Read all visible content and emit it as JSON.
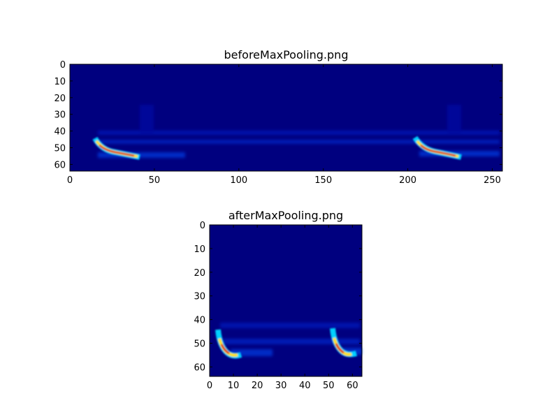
{
  "chart_data": [
    {
      "type": "image",
      "title": "beforeMaxPooling.png",
      "xlim": [
        0,
        256
      ],
      "xticks": [
        0,
        50,
        100,
        150,
        200,
        250
      ],
      "ylim": [
        64,
        0
      ],
      "yticks": [
        0,
        10,
        20,
        30,
        40,
        50,
        60
      ]
    },
    {
      "type": "image",
      "title": "afterMaxPooling.png",
      "xlim": [
        0,
        64
      ],
      "xticks": [
        0,
        10,
        20,
        30,
        40,
        50,
        60
      ],
      "ylim": [
        64,
        0
      ],
      "yticks": [
        0,
        10,
        20,
        30,
        40,
        50,
        60
      ]
    }
  ]
}
